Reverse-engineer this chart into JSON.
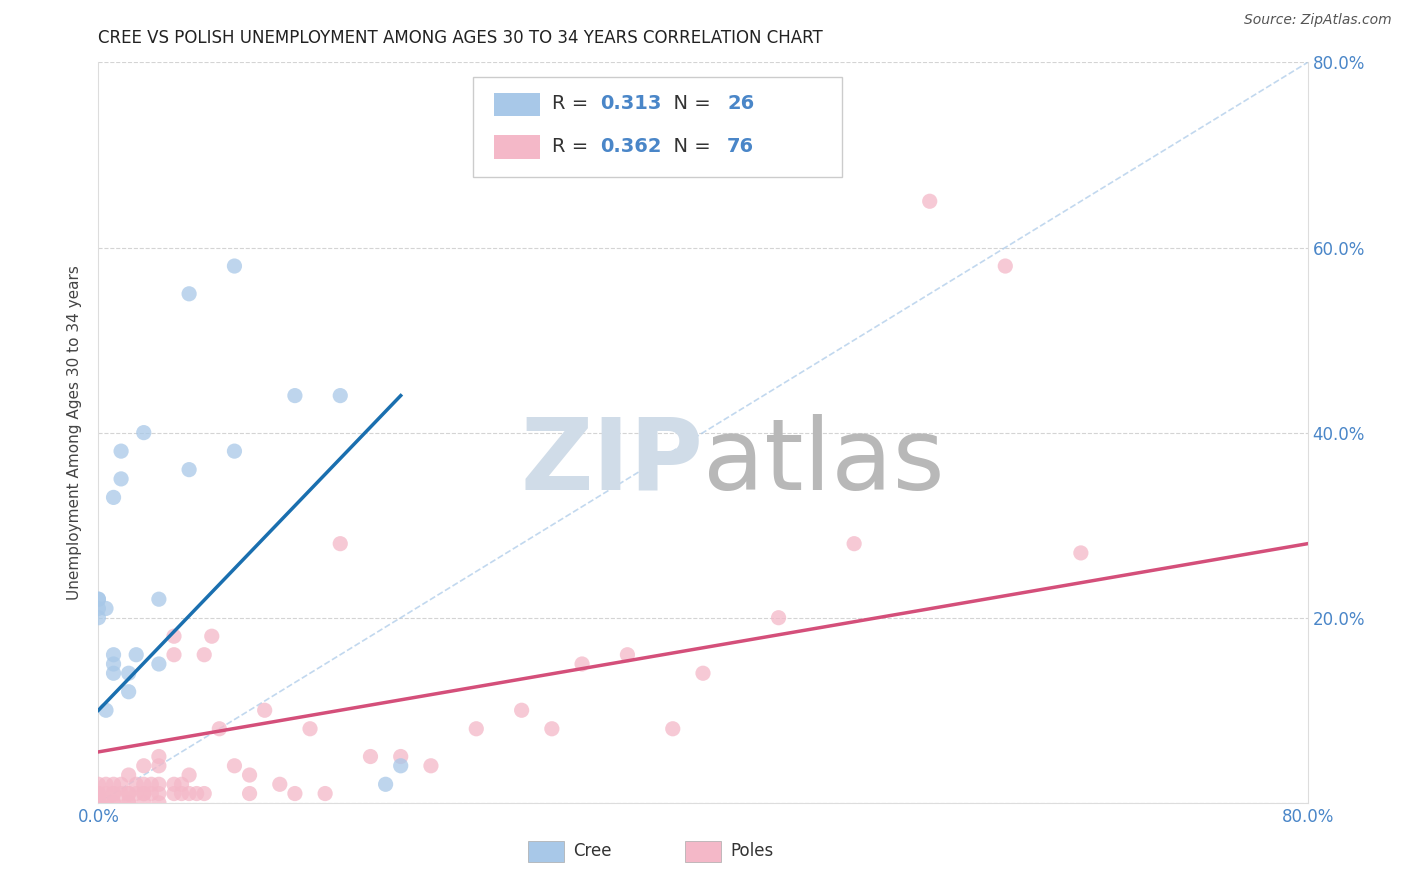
{
  "title": "CREE VS POLISH UNEMPLOYMENT AMONG AGES 30 TO 34 YEARS CORRELATION CHART",
  "source": "Source: ZipAtlas.com",
  "ylabel": "Unemployment Among Ages 30 to 34 years",
  "xlim": [
    0.0,
    0.8
  ],
  "ylim": [
    0.0,
    0.8
  ],
  "xticks": [
    0.0,
    0.1,
    0.2,
    0.3,
    0.4,
    0.5,
    0.6,
    0.7,
    0.8
  ],
  "yticks": [
    0.0,
    0.2,
    0.4,
    0.6,
    0.8
  ],
  "cree_R": 0.313,
  "cree_N": 26,
  "poles_R": 0.362,
  "poles_N": 76,
  "cree_color": "#a8c8e8",
  "poles_color": "#f4b8c8",
  "cree_line_color": "#1a6faf",
  "poles_line_color": "#d44f7a",
  "diagonal_color": "#a8c8e8",
  "tick_label_color": "#4a86c8",
  "background_color": "#ffffff",
  "grid_color": "#d0d0d0",
  "cree_x": [
    0.0,
    0.0,
    0.0,
    0.0,
    0.005,
    0.005,
    0.01,
    0.01,
    0.01,
    0.01,
    0.015,
    0.015,
    0.02,
    0.02,
    0.025,
    0.03,
    0.04,
    0.04,
    0.06,
    0.06,
    0.09,
    0.09,
    0.13,
    0.16,
    0.19,
    0.2
  ],
  "cree_y": [
    0.22,
    0.2,
    0.21,
    0.22,
    0.1,
    0.21,
    0.14,
    0.15,
    0.16,
    0.33,
    0.35,
    0.38,
    0.12,
    0.14,
    0.16,
    0.4,
    0.15,
    0.22,
    0.36,
    0.55,
    0.38,
    0.58,
    0.44,
    0.44,
    0.02,
    0.04
  ],
  "poles_x": [
    0.0,
    0.0,
    0.0,
    0.0,
    0.0,
    0.0,
    0.0,
    0.0,
    0.0,
    0.0,
    0.005,
    0.005,
    0.005,
    0.01,
    0.01,
    0.01,
    0.01,
    0.01,
    0.015,
    0.015,
    0.02,
    0.02,
    0.02,
    0.02,
    0.02,
    0.025,
    0.025,
    0.03,
    0.03,
    0.03,
    0.03,
    0.03,
    0.035,
    0.035,
    0.04,
    0.04,
    0.04,
    0.04,
    0.04,
    0.05,
    0.05,
    0.05,
    0.05,
    0.055,
    0.055,
    0.06,
    0.06,
    0.065,
    0.07,
    0.07,
    0.075,
    0.08,
    0.09,
    0.1,
    0.1,
    0.11,
    0.12,
    0.13,
    0.14,
    0.15,
    0.16,
    0.18,
    0.2,
    0.22,
    0.25,
    0.28,
    0.3,
    0.32,
    0.35,
    0.38,
    0.4,
    0.45,
    0.5,
    0.55,
    0.6,
    0.65
  ],
  "poles_y": [
    0.0,
    0.0,
    0.0,
    0.0,
    0.0,
    0.005,
    0.005,
    0.01,
    0.01,
    0.02,
    0.0,
    0.01,
    0.02,
    0.0,
    0.0,
    0.01,
    0.01,
    0.02,
    0.01,
    0.02,
    0.0,
    0.0,
    0.01,
    0.01,
    0.03,
    0.01,
    0.02,
    0.0,
    0.01,
    0.01,
    0.02,
    0.04,
    0.01,
    0.02,
    0.0,
    0.01,
    0.02,
    0.04,
    0.05,
    0.01,
    0.02,
    0.16,
    0.18,
    0.01,
    0.02,
    0.01,
    0.03,
    0.01,
    0.01,
    0.16,
    0.18,
    0.08,
    0.04,
    0.01,
    0.03,
    0.1,
    0.02,
    0.01,
    0.08,
    0.01,
    0.28,
    0.05,
    0.05,
    0.04,
    0.08,
    0.1,
    0.08,
    0.15,
    0.16,
    0.08,
    0.14,
    0.2,
    0.28,
    0.65,
    0.58,
    0.27
  ],
  "cree_line_x": [
    0.0,
    0.2
  ],
  "cree_line_y": [
    0.1,
    0.44
  ],
  "poles_line_x": [
    0.0,
    0.8
  ],
  "poles_line_y": [
    0.055,
    0.28
  ]
}
